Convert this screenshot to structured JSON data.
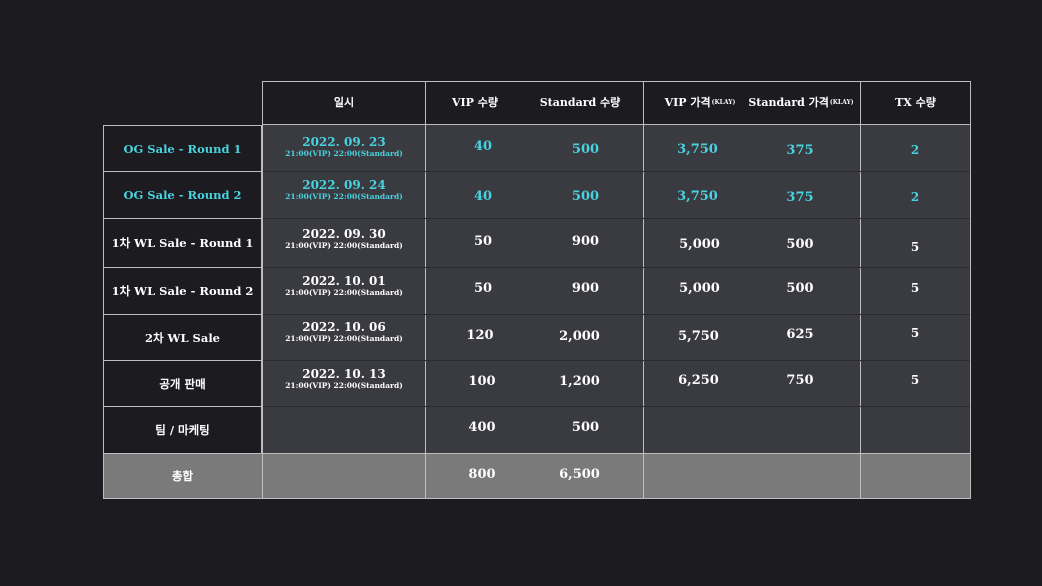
{
  "header": {
    "date": "일시",
    "vip_qty": "VIP 수량",
    "std_qty": "Standard 수량",
    "vip_price": "VIP 가격",
    "vip_price_unit": "(KLAY)",
    "std_price": "Standard 가격",
    "std_price_unit": "(KLAY)",
    "tx_qty": "TX 수량"
  },
  "rows": [
    {
      "label": "OG Sale - Round 1",
      "date": "2022. 09. 23",
      "time": "21:00(VIP) 22:00(Standard)",
      "vip_qty": "40",
      "std_qty": "500",
      "vip_price": "3,750",
      "std_price": "375",
      "tx": "2",
      "highlight": true
    },
    {
      "label": "OG Sale - Round 2",
      "date": "2022. 09. 24",
      "time": "21:00(VIP) 22:00(Standard)",
      "vip_qty": "40",
      "std_qty": "500",
      "vip_price": "3,750",
      "std_price": "375",
      "tx": "2",
      "highlight": true
    },
    {
      "label": "1차 WL Sale - Round 1",
      "date": "2022. 09. 30",
      "time": "21:00(VIP) 22:00(Standard)",
      "vip_qty": "50",
      "std_qty": "900",
      "vip_price": "5,000",
      "std_price": "500",
      "tx": "5",
      "highlight": false
    },
    {
      "label": "1차 WL Sale - Round 2",
      "date": "2022. 10. 01",
      "time": "21:00(VIP) 22:00(Standard)",
      "vip_qty": "50",
      "std_qty": "900",
      "vip_price": "5,000",
      "std_price": "500",
      "tx": "5",
      "highlight": false
    },
    {
      "label": "2차 WL Sale",
      "date": "2022. 10. 06",
      "time": "21:00(VIP) 22:00(Standard)",
      "vip_qty": "120",
      "std_qty": "2,000",
      "vip_price": "5,750",
      "std_price": "625",
      "tx": "5",
      "highlight": false
    },
    {
      "label": "공개 판매",
      "date": "2022. 10. 13",
      "time": "21:00(VIP) 22:00(Standard)",
      "vip_qty": "100",
      "std_qty": "1,200",
      "vip_price": "6,250",
      "std_price": "750",
      "tx": "5",
      "highlight": false
    },
    {
      "label": "팀 / 마케팅",
      "date": "",
      "time": "",
      "vip_qty": "400",
      "std_qty": "500",
      "vip_price": "",
      "std_price": "",
      "tx": "",
      "highlight": false
    }
  ],
  "total": {
    "label": "총합",
    "vip_qty": "800",
    "std_qty": "6,500"
  }
}
